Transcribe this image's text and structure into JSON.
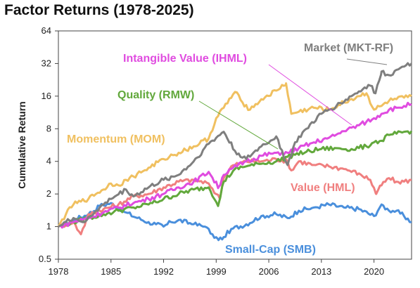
{
  "chart_data": {
    "type": "line",
    "title": "Factor Returns (1978-2025)",
    "xlabel": "",
    "ylabel": "Cumulative Return",
    "y_scale": "log2",
    "xlim": [
      1978,
      2025
    ],
    "ylim": [
      0.5,
      64
    ],
    "x_ticks": [
      "1978",
      "1985",
      "1992",
      "1999",
      "2006",
      "2013",
      "2020"
    ],
    "x_tick_values": [
      1978,
      1985,
      1992,
      1999,
      2006,
      2013,
      2020
    ],
    "y_ticks": [
      "0.5",
      "1",
      "2",
      "4",
      "8",
      "16",
      "32",
      "64"
    ],
    "y_tick_values": [
      0.5,
      1,
      2,
      4,
      8,
      16,
      32,
      64
    ],
    "grid": false,
    "legend": "inline labels with leader lines",
    "series": [
      {
        "name": "Small-Cap (SMB)",
        "color": "#4a8fdc",
        "x": [
          1978,
          1980,
          1982,
          1983.5,
          1985,
          1987,
          1988.5,
          1990,
          1991,
          1992,
          1993,
          1994,
          1996,
          1997.5,
          1998.5,
          1999.3,
          2000,
          2001,
          2003,
          2005,
          2007,
          2008.5,
          2010,
          2012,
          2014,
          2016,
          2018,
          2020,
          2021,
          2022,
          2023,
          2024,
          2025
        ],
        "y": [
          1.0,
          1.15,
          1.3,
          1.55,
          1.65,
          1.35,
          1.2,
          1.1,
          1.05,
          1.0,
          1.1,
          1.15,
          1.05,
          1.0,
          0.85,
          0.75,
          0.8,
          0.95,
          1.05,
          1.25,
          1.3,
          1.2,
          1.4,
          1.5,
          1.6,
          1.5,
          1.45,
          1.25,
          1.6,
          1.4,
          1.4,
          1.25,
          1.1
        ]
      },
      {
        "name": "Value (HML)",
        "color": "#f07f7f",
        "x": [
          1978,
          1980,
          1981,
          1982,
          1984,
          1986,
          1988,
          1990,
          1992,
          1994,
          1996,
          1998,
          1999.5,
          2000,
          2001,
          2003,
          2005,
          2007,
          2008.5,
          2009,
          2010,
          2012,
          2014,
          2016,
          2018,
          2019.5,
          2020.3,
          2021,
          2022,
          2023,
          2024,
          2025
        ],
        "y": [
          1.0,
          1.1,
          0.85,
          1.3,
          1.45,
          1.6,
          1.9,
          2.0,
          2.3,
          2.6,
          2.7,
          2.5,
          1.8,
          2.8,
          3.6,
          4.0,
          4.0,
          4.2,
          4.0,
          3.3,
          4.0,
          3.7,
          3.6,
          3.4,
          3.1,
          2.7,
          2.0,
          2.4,
          2.8,
          2.6,
          2.6,
          2.7
        ]
      },
      {
        "name": "Quality (RMW)",
        "color": "#62a83c",
        "x": [
          1978,
          1980,
          1982,
          1984,
          1986,
          1988,
          1990,
          1992,
          1994,
          1996,
          1998,
          1999.3,
          2000,
          2001.5,
          2003,
          2005,
          2007,
          2008.5,
          2009.5,
          2011,
          2013,
          2015,
          2017,
          2019,
          2020,
          2021,
          2022,
          2023,
          2024,
          2025
        ],
        "y": [
          1.0,
          1.1,
          1.2,
          1.3,
          1.4,
          1.5,
          1.6,
          1.8,
          2.0,
          2.2,
          2.3,
          1.6,
          2.6,
          3.4,
          3.6,
          3.8,
          4.0,
          4.4,
          4.6,
          4.9,
          5.2,
          5.3,
          5.2,
          5.5,
          6.0,
          6.2,
          7.0,
          7.2,
          7.5,
          7.6
        ]
      },
      {
        "name": "Intangible Value (IHML)",
        "color": "#e04ce0",
        "x": [
          1978,
          1980,
          1982,
          1984,
          1986,
          1988,
          1990,
          1992,
          1994,
          1996,
          1998,
          1999.3,
          2000,
          2001,
          2003,
          2005,
          2007,
          2008.5,
          2010,
          2012,
          2014,
          2016,
          2018,
          2019,
          2020,
          2021,
          2022,
          2023,
          2024,
          2025
        ],
        "y": [
          1.0,
          1.1,
          1.2,
          1.35,
          1.5,
          1.65,
          1.8,
          2.0,
          2.3,
          2.6,
          3.2,
          2.3,
          3.0,
          3.4,
          4.0,
          4.5,
          4.8,
          4.8,
          5.3,
          6.0,
          6.6,
          7.6,
          8.6,
          9.3,
          10.0,
          11.0,
          12.0,
          12.5,
          13.0,
          13.5
        ]
      },
      {
        "name": "Momentum (MOM)",
        "color": "#f0c060",
        "x": [
          1978,
          1979,
          1980,
          1981,
          1982,
          1983,
          1984,
          1985,
          1986,
          1987,
          1988,
          1990,
          1992,
          1994,
          1996,
          1998,
          1999,
          2000,
          2001.5,
          2002.5,
          2003.5,
          2005,
          2007,
          2008.3,
          2009,
          2010,
          2012,
          2014,
          2016,
          2018,
          2019,
          2020,
          2021,
          2022,
          2023,
          2024,
          2025
        ],
        "y": [
          1.0,
          1.3,
          1.6,
          1.7,
          1.8,
          2.0,
          2.2,
          2.5,
          2.4,
          2.7,
          2.9,
          3.5,
          4.2,
          4.8,
          5.5,
          6.5,
          10.0,
          12.5,
          17.5,
          14.0,
          12.0,
          15.0,
          18.0,
          21.0,
          11.0,
          11.5,
          12.5,
          12.0,
          14.0,
          16.0,
          17.0,
          12.0,
          13.0,
          14.5,
          15.0,
          15.5,
          16.0
        ]
      },
      {
        "name": "Market (MKT-RF)",
        "color": "#7f7f7f",
        "x": [
          1978,
          1980,
          1981.5,
          1983,
          1985,
          1987,
          1988,
          1990,
          1992,
          1994,
          1996,
          1998,
          2000,
          2001.5,
          2003,
          2005,
          2007,
          2008.5,
          2009.5,
          2011,
          2013,
          2015,
          2017,
          2018.5,
          2019.5,
          2020.2,
          2021,
          2022,
          2023,
          2024,
          2025
        ],
        "y": [
          1.0,
          1.2,
          1.1,
          1.4,
          1.8,
          2.2,
          1.9,
          2.3,
          2.7,
          3.0,
          4.0,
          5.8,
          7.5,
          5.0,
          4.2,
          5.5,
          6.8,
          3.7,
          6.0,
          8.0,
          11.0,
          13.0,
          16.0,
          18.5,
          20.0,
          17.0,
          27.0,
          25.0,
          28.0,
          30.0,
          32.0
        ]
      }
    ],
    "annotations": [
      {
        "text": "Market (MKT-RF)",
        "color": "#7f7f7f",
        "series": "Market (MKT-RF)"
      },
      {
        "text": "Intangible Value (IHML)",
        "color": "#e04ce0",
        "series": "Intangible Value (IHML)"
      },
      {
        "text": "Quality (RMW)",
        "color": "#62a83c",
        "series": "Quality (RMW)"
      },
      {
        "text": "Momentum (MOM)",
        "color": "#f0c060",
        "series": "Momentum (MOM)"
      },
      {
        "text": "Value (HML)",
        "color": "#f07f7f",
        "series": "Value (HML)"
      },
      {
        "text": "Small-Cap (SMB)",
        "color": "#4a8fdc",
        "series": "Small-Cap (SMB)"
      }
    ]
  }
}
